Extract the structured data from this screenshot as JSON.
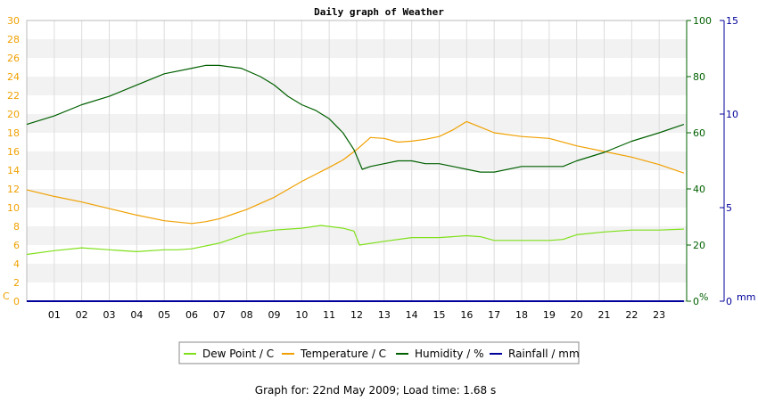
{
  "colors": {
    "dew_point": "#7fe01a",
    "temperature": "#f0a000",
    "humidity": "#006000",
    "rainfall": "#00009a",
    "band": "#f2f2f2",
    "grid": "#dcdcdc"
  },
  "chart_data": {
    "type": "line",
    "title": "Daily graph of Weather",
    "footer": "Graph for: 22nd May 2009; Load time: 1.68 s",
    "x_ticks": [
      "01",
      "02",
      "03",
      "04",
      "05",
      "06",
      "07",
      "08",
      "09",
      "10",
      "11",
      "12",
      "13",
      "14",
      "15",
      "16",
      "17",
      "18",
      "19",
      "20",
      "21",
      "22",
      "23"
    ],
    "xlim": [
      0,
      24
    ],
    "left_axis": {
      "unit": "C",
      "ylim": [
        0,
        30
      ],
      "ticks": [
        "0",
        "2",
        "4",
        "6",
        "8",
        "10",
        "12",
        "14",
        "16",
        "18",
        "20",
        "22",
        "24",
        "26",
        "28",
        "30"
      ]
    },
    "right_axis_1": {
      "unit": "%",
      "ylim": [
        0,
        100
      ],
      "ticks": [
        "0",
        "20",
        "40",
        "60",
        "80",
        "100"
      ]
    },
    "right_axis_2": {
      "unit": "mm",
      "ylim": [
        0,
        15
      ],
      "ticks": [
        "0",
        "5",
        "10",
        "15"
      ]
    },
    "legend": [
      "Dew Point / C",
      "Temperature / C",
      "Humidity / %",
      "Rainfall / mm"
    ],
    "series": [
      {
        "name": "Dew Point / C",
        "axis": "left",
        "x": [
          0,
          1,
          2,
          3,
          4,
          5,
          5.5,
          6,
          7,
          8,
          9,
          10,
          10.7,
          11.5,
          11.9,
          12.1,
          13,
          14,
          15,
          16,
          16.5,
          17,
          18,
          19,
          19.5,
          20,
          21,
          22,
          23,
          23.9
        ],
        "y": [
          5.0,
          5.4,
          5.7,
          5.5,
          5.3,
          5.5,
          5.5,
          5.6,
          6.2,
          7.2,
          7.6,
          7.8,
          8.1,
          7.8,
          7.5,
          6.0,
          6.4,
          6.8,
          6.8,
          7.0,
          6.9,
          6.5,
          6.5,
          6.5,
          6.6,
          7.1,
          7.4,
          7.6,
          7.6,
          7.7
        ]
      },
      {
        "name": "Temperature / C",
        "axis": "left",
        "x": [
          0,
          1,
          2,
          3,
          4,
          5,
          6,
          6.5,
          7,
          8,
          9,
          10,
          11,
          11.5,
          12,
          12.5,
          13,
          13.5,
          14,
          14.5,
          15,
          15.5,
          16,
          16.5,
          17,
          18,
          19,
          20,
          21,
          22,
          23,
          23.9
        ],
        "y": [
          11.9,
          11.2,
          10.6,
          9.9,
          9.2,
          8.6,
          8.3,
          8.5,
          8.8,
          9.8,
          11.1,
          12.8,
          14.3,
          15.1,
          16.2,
          17.5,
          17.4,
          17.0,
          17.1,
          17.3,
          17.6,
          18.3,
          19.2,
          18.6,
          18.0,
          17.6,
          17.4,
          16.6,
          16.0,
          15.4,
          14.6,
          13.7
        ]
      },
      {
        "name": "Humidity / %",
        "axis": "right_axis_1",
        "x": [
          0,
          1,
          2,
          3,
          4,
          5,
          6,
          6.5,
          7,
          7.8,
          8.5,
          9,
          9.5,
          10,
          10.5,
          11,
          11.5,
          11.9,
          12.2,
          12.5,
          13,
          13.5,
          14,
          14.5,
          15,
          15.5,
          16,
          16.5,
          17,
          18,
          19,
          19.5,
          20,
          21,
          22,
          23,
          23.9
        ],
        "y": [
          63,
          66,
          70,
          73,
          77,
          81,
          83,
          84,
          84,
          83,
          80,
          77,
          73,
          70,
          68,
          65,
          60,
          54,
          47,
          48,
          49,
          50,
          50,
          49,
          49,
          48,
          47,
          46,
          46,
          48,
          48,
          48,
          50,
          53,
          57,
          60,
          63
        ]
      },
      {
        "name": "Rainfall / mm",
        "axis": "right_axis_2",
        "x": [
          0,
          23.9
        ],
        "y": [
          0,
          0
        ]
      }
    ]
  }
}
